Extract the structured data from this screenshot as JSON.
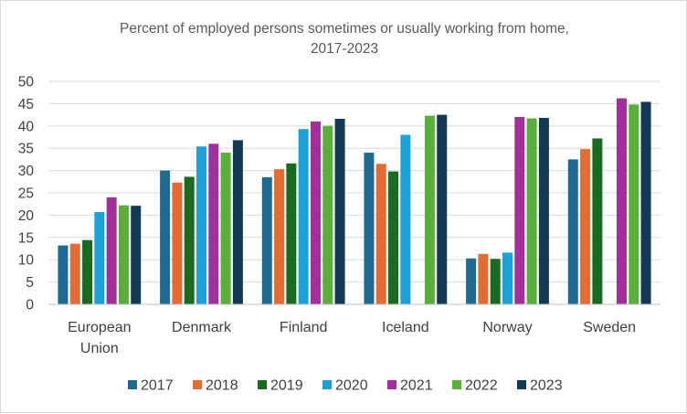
{
  "chart_data": {
    "type": "bar",
    "title": "Percent of employed persons sometimes or usually working from home, 2017-2023",
    "title_lines": [
      "Percent of employed persons sometimes or usually working from home,",
      "2017-2023"
    ],
    "categories": [
      "European Union",
      "Denmark",
      "Finland",
      "Iceland",
      "Norway",
      "Sweden"
    ],
    "category_lines": [
      [
        "European",
        "Union"
      ],
      [
        "Denmark"
      ],
      [
        "Finland"
      ],
      [
        "Iceland"
      ],
      [
        "Norway"
      ],
      [
        "Sweden"
      ]
    ],
    "series": [
      {
        "name": "2017",
        "color": "#1f6b8f",
        "values": [
          13.2,
          30.0,
          28.5,
          34.0,
          10.3,
          32.5
        ]
      },
      {
        "name": "2018",
        "color": "#e46c32",
        "values": [
          13.6,
          27.3,
          30.3,
          31.5,
          11.3,
          34.8
        ]
      },
      {
        "name": "2019",
        "color": "#1a6b22",
        "values": [
          14.4,
          28.6,
          31.6,
          29.8,
          10.2,
          37.2
        ]
      },
      {
        "name": "2020",
        "color": "#1ba3d9",
        "values": [
          20.7,
          35.4,
          39.3,
          38.0,
          11.6,
          null
        ]
      },
      {
        "name": "2021",
        "color": "#a3309a",
        "values": [
          24.0,
          36.0,
          41.0,
          null,
          42.0,
          46.2
        ]
      },
      {
        "name": "2022",
        "color": "#5aae3a",
        "values": [
          22.2,
          34.0,
          40.0,
          42.3,
          41.7,
          44.8
        ]
      },
      {
        "name": "2023",
        "color": "#123a55",
        "values": [
          22.1,
          36.8,
          41.6,
          42.5,
          41.8,
          45.4
        ]
      }
    ],
    "ylim": [
      0,
      50
    ],
    "yticks": [
      0,
      5,
      10,
      15,
      20,
      25,
      30,
      35,
      40,
      45,
      50
    ],
    "grid": true,
    "legend_position": "bottom",
    "xlabel": "",
    "ylabel": ""
  }
}
